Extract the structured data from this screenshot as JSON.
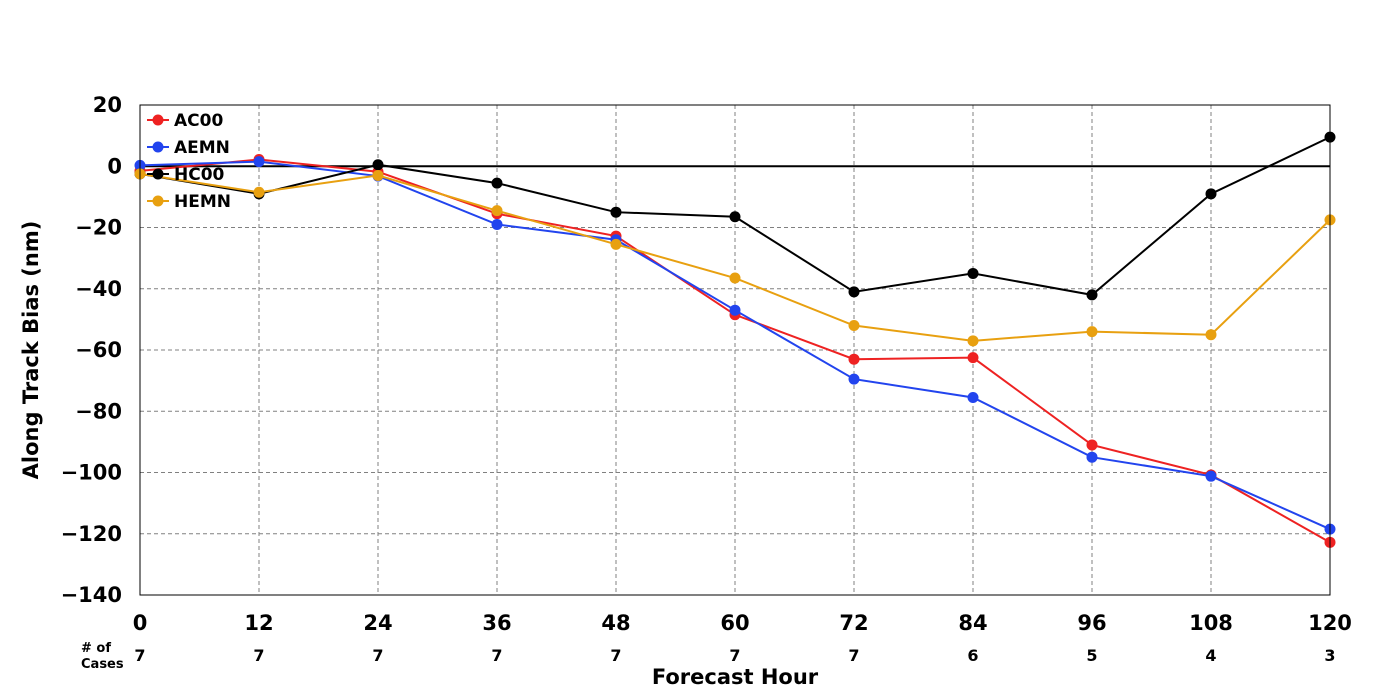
{
  "chart_data": {
    "type": "line",
    "title": "",
    "xlabel": "Forecast Hour",
    "ylabel": "Along Track Bias (nm)",
    "x": [
      0,
      12,
      24,
      36,
      48,
      60,
      72,
      84,
      96,
      108,
      120
    ],
    "x_tick_labels": [
      "0",
      "12",
      "24",
      "36",
      "48",
      "60",
      "72",
      "84",
      "96",
      "108",
      "120"
    ],
    "y_ticks": [
      20,
      0,
      -20,
      -40,
      -60,
      -80,
      -100,
      -120,
      -140
    ],
    "y_tick_labels": [
      "20",
      "0",
      "−20",
      "−40",
      "−60",
      "−80",
      "−100",
      "−120",
      "−140"
    ],
    "xlim": [
      0,
      120
    ],
    "ylim": [
      -140,
      20
    ],
    "grid": true,
    "zero_line": true,
    "legend_position": "top-left",
    "cases_label": [
      "# of",
      "Cases"
    ],
    "cases": [
      "7",
      "7",
      "7",
      "7",
      "7",
      "7",
      "7",
      "6",
      "5",
      "4",
      "3"
    ],
    "series": [
      {
        "name": "AC00",
        "color": "#ee2222",
        "values": [
          -1.5,
          2.2,
          -1.8,
          -15.5,
          -22.8,
          -48.5,
          -63.0,
          -62.5,
          -91.0,
          -100.8,
          -122.8
        ]
      },
      {
        "name": "AEMN",
        "color": "#2244ee",
        "values": [
          0.3,
          1.5,
          -3.2,
          -19.0,
          -24.0,
          -47.0,
          -69.5,
          -75.5,
          -95.0,
          -101.2,
          -118.5
        ]
      },
      {
        "name": "HC00",
        "color": "#000000",
        "values": [
          -2.5,
          -9.0,
          0.5,
          -5.5,
          -15.0,
          -16.5,
          -41.0,
          -35.0,
          -42.0,
          -9.0,
          9.5
        ]
      },
      {
        "name": "HEMN",
        "color": "#e8a010",
        "values": [
          -2.5,
          -8.5,
          -3.0,
          -14.5,
          -25.5,
          -36.5,
          -52.0,
          -57.0,
          -54.0,
          -55.0,
          -17.5
        ]
      }
    ]
  }
}
